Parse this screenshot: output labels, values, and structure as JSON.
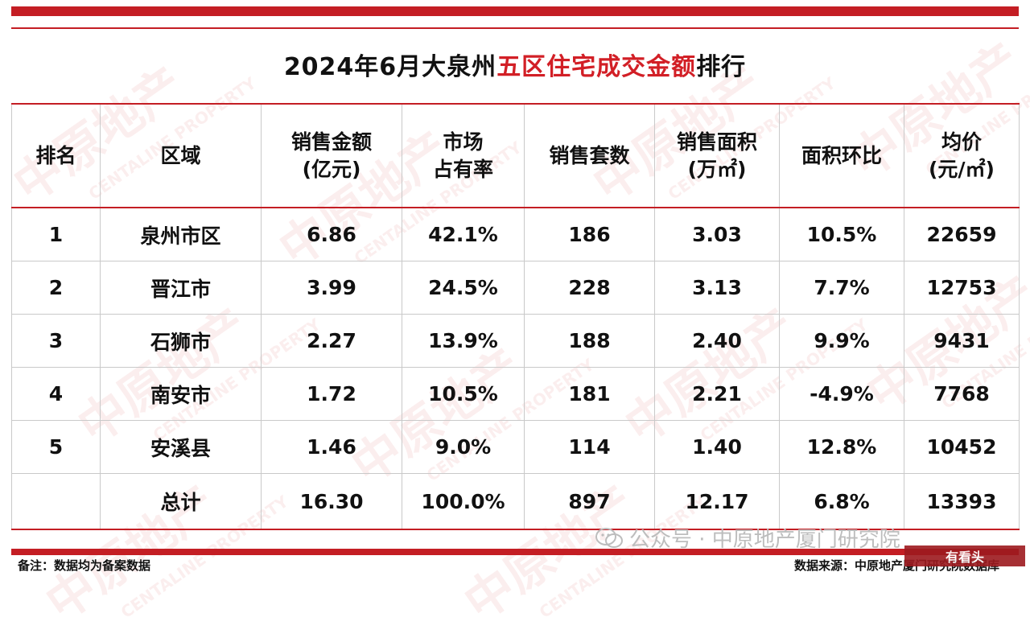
{
  "title": {
    "prefix": "2024年6月大泉州",
    "accent": "五区住宅成交金额",
    "suffix": "排行"
  },
  "headers": [
    [
      "排名"
    ],
    [
      "区域"
    ],
    [
      "销售金额",
      "(亿元)"
    ],
    [
      "市场",
      "占有率"
    ],
    [
      "销售套数"
    ],
    [
      "销售面积",
      "(万㎡)"
    ],
    [
      "面积环比"
    ],
    [
      "均价",
      "(元/㎡)"
    ]
  ],
  "rows": [
    [
      "1",
      "泉州市区",
      "6.86",
      "42.1%",
      "186",
      "3.03",
      "10.5%",
      "22659"
    ],
    [
      "2",
      "晋江市",
      "3.99",
      "24.5%",
      "228",
      "3.13",
      "7.7%",
      "12753"
    ],
    [
      "3",
      "石狮市",
      "2.27",
      "13.9%",
      "188",
      "2.40",
      "9.9%",
      "9431"
    ],
    [
      "4",
      "南安市",
      "1.72",
      "10.5%",
      "181",
      "2.21",
      "-4.9%",
      "7768"
    ],
    [
      "5",
      "安溪县",
      "1.46",
      "9.0%",
      "114",
      "1.40",
      "12.8%",
      "10452"
    ]
  ],
  "total": [
    "",
    "总计",
    "16.30",
    "100.0%",
    "897",
    "12.17",
    "6.8%",
    "13393"
  ],
  "footer": {
    "note": "备注：数据均为备案数据",
    "source": "数据来源：中原地产厦门研究院数据库",
    "wechat": "公众号 · 中原地产厦门研究院",
    "corner": "有看头"
  },
  "watermark": {
    "cn": "中原地产",
    "en": "CENTALINE PROPERTY"
  },
  "colors": {
    "brand_red": "#c41e24",
    "accent_red": "#d21f26"
  }
}
